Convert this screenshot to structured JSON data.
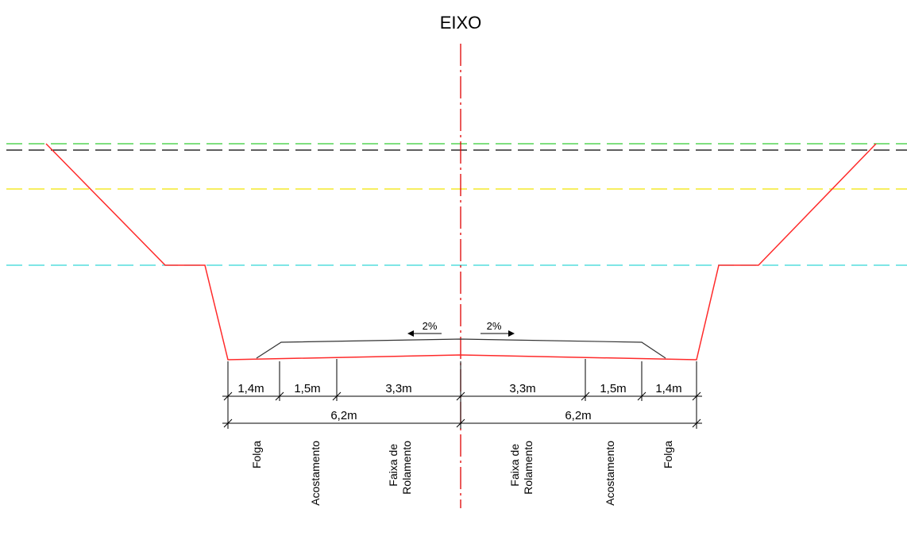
{
  "title": "EIXO",
  "slopes": {
    "left": "2%",
    "right": "2%"
  },
  "dimensions": {
    "left": {
      "folga": "1,4m",
      "acostamento": "1,5m",
      "faixa": "3,3m",
      "total": "6,2m"
    },
    "right": {
      "faixa": "3,3m",
      "acostamento": "1,5m",
      "folga": "1,4m",
      "total": "6,2m"
    }
  },
  "labels": {
    "left": {
      "folga": [
        "Folga"
      ],
      "acostamento": [
        "Acostamento"
      ],
      "faixa": [
        "Faixa de",
        "Rolamento"
      ]
    },
    "right": {
      "faixa": [
        "Faixa de",
        "Rolamento"
      ],
      "acostamento": [
        "Acostamento"
      ],
      "folga": [
        "Folga"
      ]
    }
  },
  "colors": {
    "axis": "#e00000",
    "section": "#ff2a2a",
    "pavement": "#333333",
    "green_line": "#33cc33",
    "black_line": "#000000",
    "yellow_line": "#f2e300",
    "cyan_line": "#33d6d6",
    "dimension": "#000000"
  }
}
